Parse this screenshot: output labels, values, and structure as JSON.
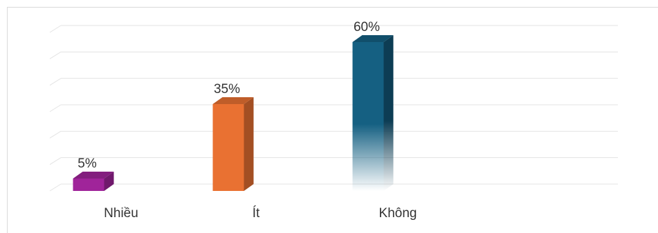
{
  "chart_data": {
    "type": "bar",
    "categories": [
      "Nhiều",
      "Ít",
      "Không"
    ],
    "values": [
      5,
      35,
      60
    ],
    "value_labels": [
      "5%",
      "35%",
      "60%"
    ],
    "ylim": [
      0,
      60
    ],
    "grid": true,
    "legend": "none",
    "colors": [
      "#a0249a",
      "#e97132",
      "#156082"
    ]
  }
}
